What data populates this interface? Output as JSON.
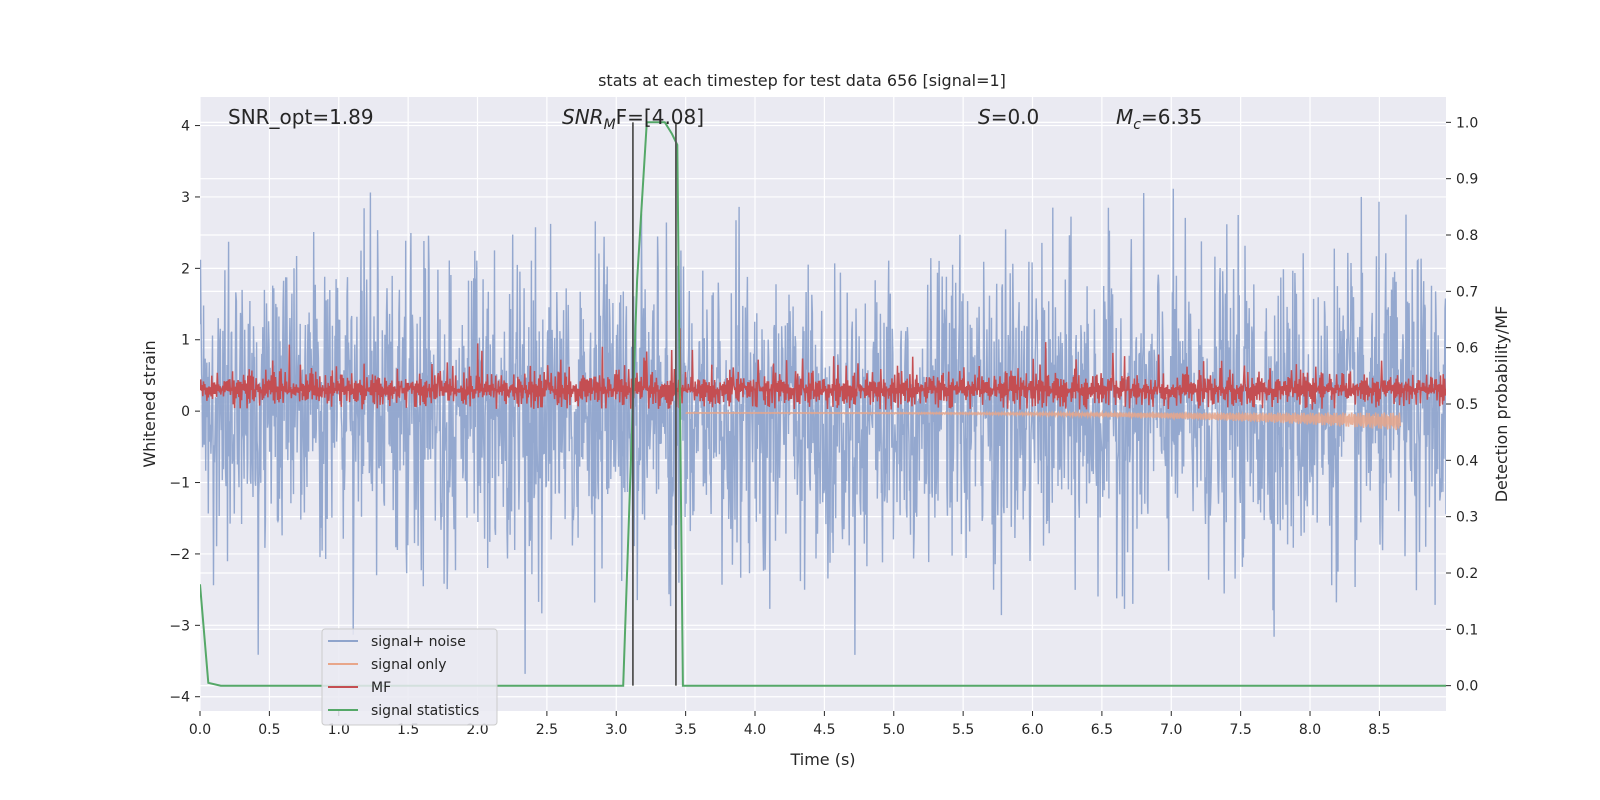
{
  "chart_data": {
    "type": "line",
    "title": "stats at each timestep for test data 656 [signal=1]",
    "xlabel": "Time (s)",
    "ylabel": "Whitened strain",
    "y2label": "Detection probability/MF",
    "xlim": [
      0,
      8.98
    ],
    "ylim": [
      -4.2,
      4.4
    ],
    "y2lim": [
      -0.045,
      1.045
    ],
    "grid": true,
    "background": "#eaeaf2",
    "xticks": [
      "0.0",
      "0.5",
      "1.0",
      "1.5",
      "2.0",
      "2.5",
      "3.0",
      "3.5",
      "4.0",
      "4.5",
      "5.0",
      "5.5",
      "6.0",
      "6.5",
      "7.0",
      "7.5",
      "8.0",
      "8.5"
    ],
    "xtick_values": [
      0,
      0.5,
      1,
      1.5,
      2,
      2.5,
      3,
      3.5,
      4,
      4.5,
      5,
      5.5,
      6,
      6.5,
      7,
      7.5,
      8,
      8.5
    ],
    "yticks": [
      "−4",
      "−3",
      "−2",
      "−1",
      "0",
      "1",
      "2",
      "3",
      "4"
    ],
    "ytick_values": [
      -4,
      -3,
      -2,
      -1,
      0,
      1,
      2,
      3,
      4
    ],
    "y2ticks": [
      "0.0",
      "0.1",
      "0.2",
      "0.3",
      "0.4",
      "0.5",
      "0.6",
      "0.7",
      "0.8",
      "0.9",
      "1.0"
    ],
    "y2tick_values": [
      0,
      0.1,
      0.2,
      0.3,
      0.4,
      0.5,
      0.6,
      0.7,
      0.8,
      0.9,
      1.0
    ],
    "annotations": {
      "snr_opt": "SNR_opt=1.89",
      "snr_mf_base": "SNR",
      "snr_mf_sub": "M",
      "snr_mf_rest": "F=[4.08]",
      "s_label": "S",
      "s_value": "=0.0",
      "mc_label": "M",
      "mc_sub": "c",
      "mc_value": "=6.35"
    },
    "vertical_lines_x": [
      3.12,
      3.43
    ],
    "series": [
      {
        "name": "signal+ noise",
        "color": "#8fa4cc",
        "axis": "left",
        "kind": "noise",
        "std": 1.0,
        "t_start": 0,
        "t_end": 8.98
      },
      {
        "name": "signal only",
        "color": "#e8a68a",
        "axis": "left",
        "kind": "chirp",
        "t_start": 3.5,
        "t_end": 8.65,
        "amp_start": 0.01,
        "amp_end": 0.25
      },
      {
        "name": "MF",
        "color": "#c44e52",
        "axis": "left",
        "kind": "mf",
        "baseline": 0.3,
        "t_start": 0,
        "t_end": 8.98
      },
      {
        "name": "signal statistics",
        "color": "#55a868",
        "axis": "right",
        "x": [
          0.0,
          0.06,
          0.15,
          0.5,
          1.0,
          1.5,
          2.0,
          2.5,
          3.0,
          3.05,
          3.15,
          3.22,
          3.3,
          3.35,
          3.4,
          3.44,
          3.48,
          3.55,
          4.0,
          5.0,
          6.0,
          7.0,
          8.0,
          8.98
        ],
        "y": [
          0.18,
          0.005,
          0.0,
          0.0,
          0.0,
          0.0,
          0.0,
          0.0,
          0.0,
          0.0,
          0.72,
          1.0,
          1.0,
          1.0,
          0.98,
          0.96,
          0.0,
          0.0,
          0.0,
          0.0,
          0.0,
          0.0,
          0.0,
          0.0
        ]
      }
    ],
    "legend_position": "lower-left"
  }
}
